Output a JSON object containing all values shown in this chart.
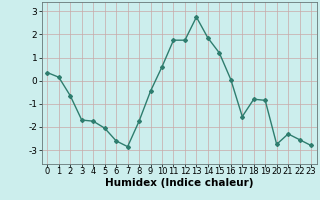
{
  "x": [
    0,
    1,
    2,
    3,
    4,
    5,
    6,
    7,
    8,
    9,
    10,
    11,
    12,
    13,
    14,
    15,
    16,
    17,
    18,
    19,
    20,
    21,
    22,
    23
  ],
  "y": [
    0.35,
    0.15,
    -0.65,
    -1.7,
    -1.75,
    -2.05,
    -2.6,
    -2.85,
    -1.75,
    -0.45,
    0.6,
    1.75,
    1.75,
    2.75,
    1.85,
    1.2,
    0.05,
    -1.55,
    -0.8,
    -0.85,
    -2.75,
    -2.3,
    -2.55,
    -2.8
  ],
  "line_color": "#2e7d6e",
  "marker": "D",
  "markersize": 2.0,
  "linewidth": 1.0,
  "xlabel": "Humidex (Indice chaleur)",
  "xlabel_fontsize": 7.5,
  "xlim": [
    -0.5,
    23.5
  ],
  "ylim": [
    -3.6,
    3.4
  ],
  "yticks": [
    -3,
    -2,
    -1,
    0,
    1,
    2,
    3
  ],
  "xticks": [
    0,
    1,
    2,
    3,
    4,
    5,
    6,
    7,
    8,
    9,
    10,
    11,
    12,
    13,
    14,
    15,
    16,
    17,
    18,
    19,
    20,
    21,
    22,
    23
  ],
  "bg_color": "#cceeed",
  "grid_color": "#c8a8a8",
  "tick_labelsize": 6.0,
  "ylabel_labelsize": 6.5
}
